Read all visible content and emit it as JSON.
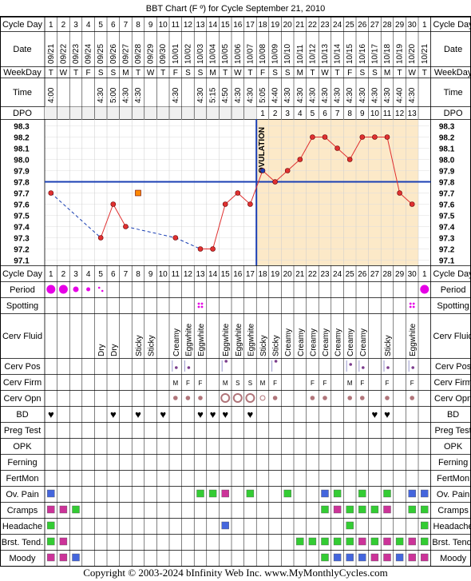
{
  "title": "BBT Chart (F º) for Cycle September 21, 2010",
  "copyright": "Copyright © 2003-2024 bInfinity Web Inc.    www.MyMonthlyCycles.com",
  "row_labels": {
    "cycle_day": "Cycle Day",
    "date": "Date",
    "weekday": "WeekDay",
    "time": "Time",
    "dpo": "DPO",
    "period": "Period",
    "spotting": "Spotting",
    "cerv_fluid": "Cerv Fluid",
    "cerv_pos": "Cerv Pos",
    "cerv_firm": "Cerv Firm",
    "cerv_opn": "Cerv Opn",
    "bd": "BD",
    "preg_test": "Preg Test",
    "opk": "OPK",
    "ferning": "Ferning",
    "fertmon": "FertMon",
    "ov_pain": "Ov. Pain",
    "cramps": "Cramps",
    "headache": "Headache",
    "brst_tend": "Brst. Tend.",
    "moody": "Moody"
  },
  "ovulation_label": "OVULATION",
  "colors": {
    "luteal_bg": "#fce9c8",
    "temp_line": "#e03030",
    "coverline": "#1a3fb3",
    "ovulation_line": "#1a3fb3",
    "period": "#e600e6",
    "symptom_green": "#33cc33",
    "symptom_pink": "#cc3399",
    "symptom_blue": "#4466dd"
  },
  "chart_data": {
    "type": "line",
    "cycle_days": [
      "1",
      "2",
      "3",
      "4",
      "5",
      "6",
      "7",
      "8",
      "9",
      "10",
      "11",
      "12",
      "13",
      "14",
      "15",
      "16",
      "17",
      "18",
      "19",
      "20",
      "21",
      "22",
      "23",
      "24",
      "25",
      "26",
      "27",
      "28",
      "29",
      "30",
      "1"
    ],
    "dates": [
      "09/21",
      "09/22",
      "09/23",
      "09/24",
      "09/25",
      "09/26",
      "09/27",
      "09/28",
      "09/29",
      "09/30",
      "10/01",
      "10/02",
      "10/03",
      "10/04",
      "10/05",
      "10/06",
      "10/07",
      "10/08",
      "10/09",
      "10/10",
      "10/11",
      "10/12",
      "10/13",
      "10/14",
      "10/15",
      "10/16",
      "10/17",
      "10/18",
      "10/19",
      "10/20",
      "10/21"
    ],
    "weekdays": [
      "T",
      "W",
      "T",
      "F",
      "S",
      "S",
      "M",
      "T",
      "W",
      "T",
      "F",
      "S",
      "S",
      "M",
      "T",
      "W",
      "T",
      "F",
      "S",
      "S",
      "M",
      "T",
      "W",
      "T",
      "F",
      "S",
      "S",
      "M",
      "T",
      "W",
      "T"
    ],
    "times": [
      "4:00",
      "",
      "",
      "",
      "4:30",
      "5:00",
      "4:30",
      "4:30",
      "",
      "",
      "4:30",
      "",
      "4:30",
      "5:15",
      "4:50",
      "4:30",
      "4:30",
      "5:05",
      "4:40",
      "4:30",
      "4:30",
      "4:30",
      "4:30",
      "4:30",
      "4:30",
      "4:30",
      "4:30",
      "4:30",
      "4:40",
      "4:30",
      ""
    ],
    "dpo": [
      "",
      "",
      "",
      "",
      "",
      "",
      "",
      "",
      "",
      "",
      "",
      "",
      "",
      "",
      "",
      "",
      "",
      "1",
      "2",
      "3",
      "4",
      "5",
      "6",
      "7",
      "8",
      "9",
      "10",
      "11",
      "12",
      "13",
      ""
    ],
    "y_ticks": [
      "98.3",
      "98.2",
      "98.1",
      "98.0",
      "97.9",
      "97.8",
      "97.7",
      "97.6",
      "97.5",
      "97.4",
      "97.3",
      "97.2",
      "97.1"
    ],
    "ylim": [
      97.1,
      98.3
    ],
    "temperatures": [
      97.7,
      null,
      null,
      null,
      97.3,
      97.6,
      97.4,
      null,
      null,
      null,
      97.3,
      null,
      97.2,
      97.2,
      97.6,
      97.7,
      97.6,
      97.9,
      97.8,
      97.9,
      98.0,
      98.2,
      98.2,
      98.1,
      98.0,
      98.2,
      98.2,
      98.2,
      97.7,
      97.6,
      null
    ],
    "discarded_temps": [
      {
        "day_index": 7,
        "value": 97.7
      }
    ],
    "coverline": 97.8,
    "ovulation_day_index": 16,
    "period": [
      "heavy",
      "heavy",
      "medium",
      "light",
      "spotting",
      "",
      "",
      "",
      "",
      "",
      "",
      "",
      "",
      "",
      "",
      "",
      "",
      "",
      "",
      "",
      "",
      "",
      "",
      "",
      "",
      "",
      "",
      "",
      "",
      "",
      "heavy"
    ],
    "spotting": [
      "",
      "",
      "",
      "",
      "",
      "",
      "",
      "",
      "",
      "",
      "",
      "",
      "1",
      "",
      "",
      "",
      "",
      "",
      "",
      "",
      "",
      "",
      "",
      "",
      "",
      "",
      "",
      "",
      "",
      "1",
      ""
    ],
    "cerv_fluid": [
      "",
      "",
      "",
      "",
      "Dry",
      "Dry",
      "",
      "Sticky",
      "Sticky",
      "",
      "Creamy",
      "Eggwhite",
      "Eggwhite",
      "",
      "Eggwhite",
      "Eggwhite",
      "Eggwhite",
      "Sticky",
      "Sticky",
      "Creamy",
      "Creamy",
      "Creamy",
      "Creamy",
      "Creamy",
      "Creamy",
      "Creamy",
      "",
      "Sticky",
      "",
      "Eggwhite",
      ""
    ],
    "cerv_pos": [
      "",
      "",
      "",
      "",
      "",
      "",
      "",
      "",
      "",
      "",
      "low",
      "low",
      "",
      "",
      "high",
      "",
      "",
      "",
      "high",
      "",
      "",
      "",
      "",
      "",
      "med",
      "low",
      "",
      "low",
      "",
      "low",
      ""
    ],
    "cerv_firm": [
      "",
      "",
      "",
      "",
      "",
      "",
      "",
      "",
      "",
      "",
      "M",
      "F",
      "F",
      "",
      "M",
      "S",
      "S",
      "M",
      "F",
      "",
      "",
      "F",
      "F",
      "",
      "M",
      "F",
      "",
      "F",
      "",
      "F",
      ""
    ],
    "cerv_opn": [
      "",
      "",
      "",
      "",
      "",
      "",
      "",
      "",
      "",
      "",
      "small",
      "small",
      "small",
      "",
      "large",
      "large",
      "large",
      "med",
      "small",
      "",
      "",
      "small",
      "small",
      "",
      "small",
      "small",
      "",
      "small",
      "",
      "small",
      ""
    ],
    "bd": [
      1,
      0,
      0,
      0,
      0,
      1,
      0,
      1,
      0,
      1,
      0,
      0,
      1,
      1,
      1,
      0,
      1,
      0,
      0,
      0,
      0,
      0,
      0,
      0,
      0,
      0,
      1,
      1,
      0,
      0,
      0
    ],
    "ov_pain": [
      "b",
      "",
      "",
      "",
      "",
      "",
      "",
      "",
      "",
      "",
      "",
      "",
      "g",
      "g",
      "p",
      "",
      "g",
      "",
      "",
      "g",
      "",
      "",
      "b",
      "g",
      "",
      "g",
      "",
      "g",
      "",
      "b",
      "b"
    ],
    "cramps": [
      "p",
      "p",
      "g",
      "",
      "",
      "",
      "",
      "",
      "",
      "",
      "",
      "",
      "",
      "",
      "",
      "",
      "",
      "",
      "",
      "",
      "",
      "",
      "g",
      "p",
      "g",
      "g",
      "g",
      "p",
      "",
      "g",
      "g"
    ],
    "headache": [
      "g",
      "",
      "",
      "",
      "",
      "",
      "",
      "",
      "",
      "",
      "",
      "",
      "",
      "",
      "b",
      "",
      "",
      "",
      "",
      "",
      "",
      "",
      "",
      "",
      "g",
      "",
      "",
      "",
      "",
      "",
      "g"
    ],
    "brst_tend": [
      "g",
      "p",
      "",
      "",
      "",
      "",
      "",
      "",
      "",
      "",
      "",
      "",
      "",
      "",
      "",
      "",
      "",
      "",
      "",
      "",
      "g",
      "g",
      "g",
      "g",
      "g",
      "p",
      "g",
      "p",
      "g",
      "p",
      "g"
    ],
    "moody": [
      "p",
      "p",
      "b",
      "",
      "",
      "",
      "",
      "",
      "",
      "",
      "",
      "",
      "",
      "",
      "",
      "",
      "",
      "",
      "",
      "",
      "",
      "",
      "g",
      "b",
      "b",
      "b",
      "p",
      "p",
      "b",
      "p",
      "p"
    ]
  }
}
